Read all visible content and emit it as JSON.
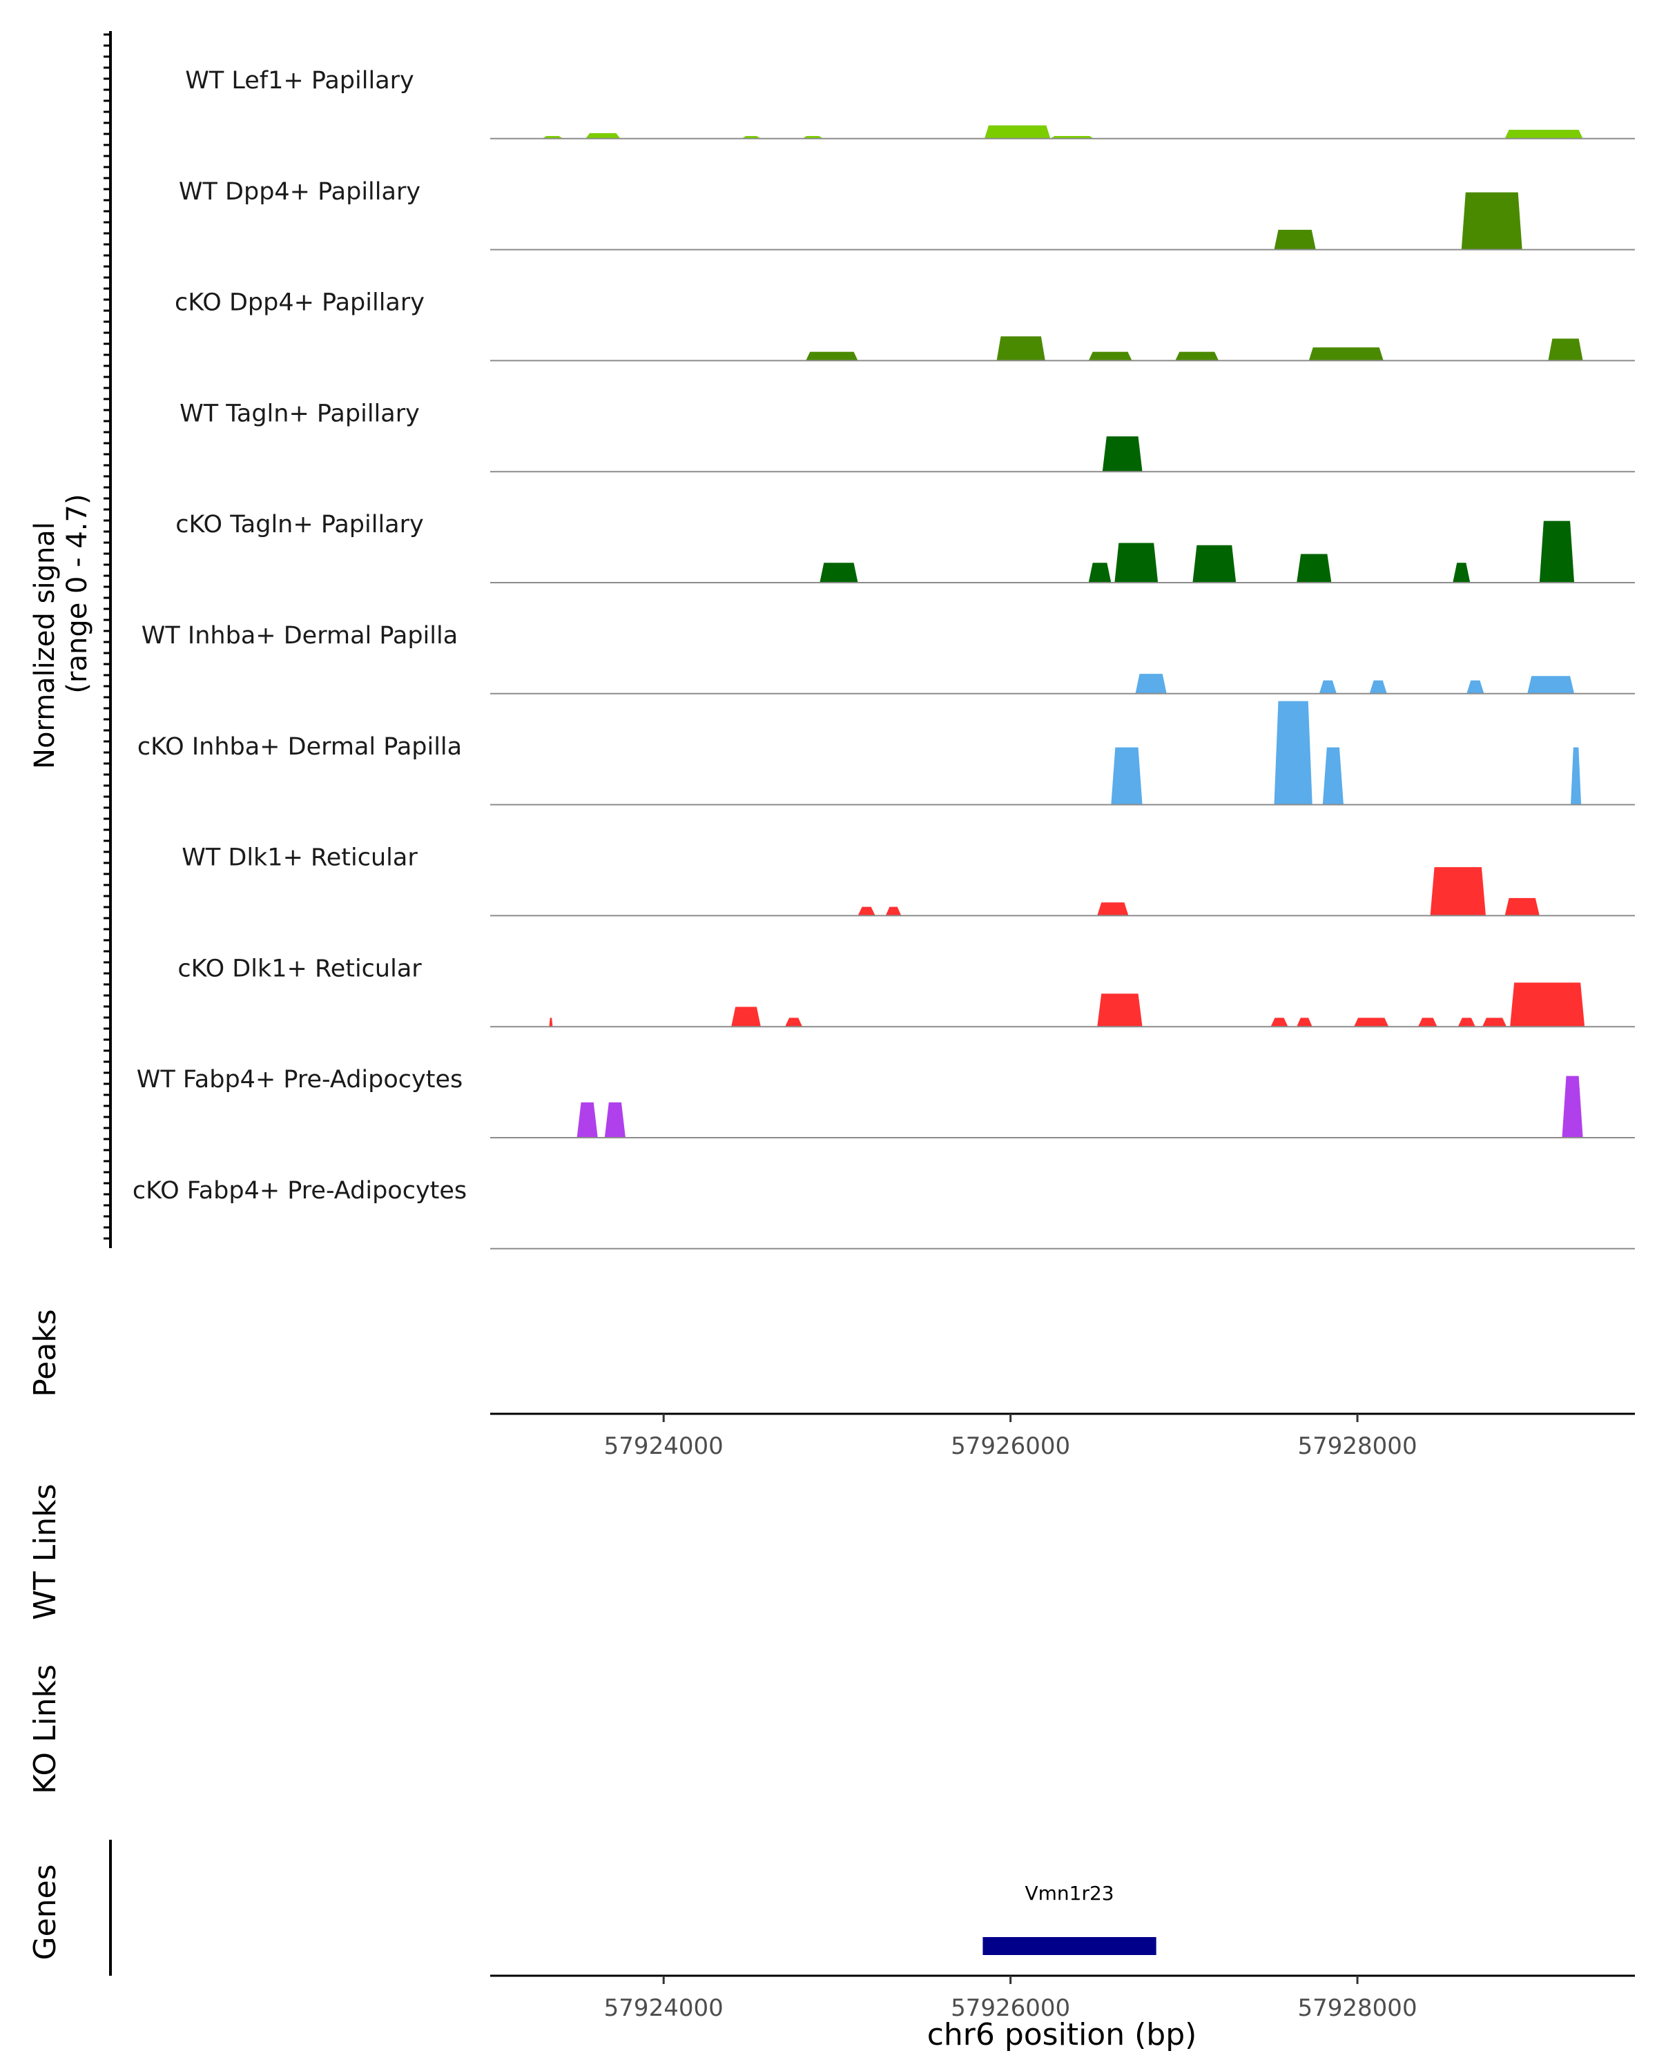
{
  "chart_data": {
    "type": "area",
    "title": "",
    "xlabel": "chr6 position (bp)",
    "ylabel": "Normalized signal\n(range 0 - 4.7)",
    "ylim": [
      0,
      4.7
    ],
    "xlim": [
      57923000,
      57929600
    ],
    "x_ticks": [
      57924000,
      57926000,
      57928000
    ],
    "tick_labels": [
      "57924000",
      "57926000",
      "57928000"
    ],
    "tracks": [
      {
        "name": "WT Lef1+ Papillary",
        "color": "#7ccd00",
        "segments": [
          {
            "start": 57923300,
            "end": 57923420,
            "height": 0.12
          },
          {
            "start": 57923550,
            "end": 57923750,
            "height": 0.25
          },
          {
            "start": 57924450,
            "end": 57924560,
            "height": 0.12
          },
          {
            "start": 57924800,
            "end": 57924920,
            "height": 0.12
          },
          {
            "start": 57925850,
            "end": 57926230,
            "height": 0.6
          },
          {
            "start": 57926230,
            "end": 57926480,
            "height": 0.12
          },
          {
            "start": 57928850,
            "end": 57929300,
            "height": 0.4
          }
        ]
      },
      {
        "name": "WT Dpp4+ Papillary",
        "color": "#4a8a00",
        "segments": [
          {
            "start": 57927520,
            "end": 57927760,
            "height": 0.9
          },
          {
            "start": 57928600,
            "end": 57928950,
            "height": 2.6
          }
        ]
      },
      {
        "name": "cKO Dpp4+ Papillary",
        "color": "#4a8a00",
        "segments": [
          {
            "start": 57924820,
            "end": 57925120,
            "height": 0.4
          },
          {
            "start": 57925920,
            "end": 57926200,
            "height": 1.1
          },
          {
            "start": 57926450,
            "end": 57926700,
            "height": 0.4
          },
          {
            "start": 57926950,
            "end": 57927200,
            "height": 0.4
          },
          {
            "start": 57927720,
            "end": 57928150,
            "height": 0.6
          },
          {
            "start": 57929100,
            "end": 57929300,
            "height": 1.0
          }
        ]
      },
      {
        "name": "WT Tagln+ Papillary",
        "color": "#006400",
        "segments": [
          {
            "start": 57926530,
            "end": 57926760,
            "height": 1.6
          }
        ]
      },
      {
        "name": "cKO Tagln+ Papillary",
        "color": "#006400",
        "segments": [
          {
            "start": 57924900,
            "end": 57925120,
            "height": 0.9
          },
          {
            "start": 57926450,
            "end": 57926580,
            "height": 0.9
          },
          {
            "start": 57926600,
            "end": 57926850,
            "height": 1.8
          },
          {
            "start": 57927050,
            "end": 57927300,
            "height": 1.7
          },
          {
            "start": 57927650,
            "end": 57927850,
            "height": 1.3
          },
          {
            "start": 57928550,
            "end": 57928650,
            "height": 0.9
          },
          {
            "start": 57929050,
            "end": 57929250,
            "height": 2.8
          }
        ]
      },
      {
        "name": "WT Inhba+ Dermal Papilla",
        "color": "#5aacea",
        "segments": [
          {
            "start": 57926720,
            "end": 57926900,
            "height": 0.9
          },
          {
            "start": 57927780,
            "end": 57927880,
            "height": 0.6
          },
          {
            "start": 57928070,
            "end": 57928170,
            "height": 0.6
          },
          {
            "start": 57928630,
            "end": 57928730,
            "height": 0.6
          },
          {
            "start": 57928980,
            "end": 57929250,
            "height": 0.8
          }
        ]
      },
      {
        "name": "cKO Inhba+ Dermal Papilla",
        "color": "#5aacea",
        "segments": [
          {
            "start": 57926580,
            "end": 57926760,
            "height": 2.6
          },
          {
            "start": 57927520,
            "end": 57927740,
            "height": 4.7
          },
          {
            "start": 57927800,
            "end": 57927920,
            "height": 2.6
          },
          {
            "start": 57929230,
            "end": 57929290,
            "height": 2.6
          }
        ]
      },
      {
        "name": "WT Dlk1+ Reticular",
        "color": "#ff3030",
        "segments": [
          {
            "start": 57925120,
            "end": 57925220,
            "height": 0.4
          },
          {
            "start": 57925280,
            "end": 57925370,
            "height": 0.4
          },
          {
            "start": 57926500,
            "end": 57926680,
            "height": 0.6
          },
          {
            "start": 57928420,
            "end": 57928740,
            "height": 2.2
          },
          {
            "start": 57928850,
            "end": 57929050,
            "height": 0.8
          }
        ]
      },
      {
        "name": "cKO Dlk1+ Reticular",
        "color": "#ff3030",
        "segments": [
          {
            "start": 57923340,
            "end": 57923360,
            "height": 0.4
          },
          {
            "start": 57924390,
            "end": 57924560,
            "height": 0.9
          },
          {
            "start": 57924700,
            "end": 57924800,
            "height": 0.4
          },
          {
            "start": 57926500,
            "end": 57926760,
            "height": 1.5
          },
          {
            "start": 57927500,
            "end": 57927600,
            "height": 0.4
          },
          {
            "start": 57927650,
            "end": 57927740,
            "height": 0.4
          },
          {
            "start": 57927980,
            "end": 57928180,
            "height": 0.4
          },
          {
            "start": 57928350,
            "end": 57928460,
            "height": 0.4
          },
          {
            "start": 57928580,
            "end": 57928680,
            "height": 0.4
          },
          {
            "start": 57928720,
            "end": 57928860,
            "height": 0.4
          },
          {
            "start": 57928880,
            "end": 57929310,
            "height": 2.0
          }
        ]
      },
      {
        "name": "WT Fabp4+ Pre-Adipocytes",
        "color": "#b040ec",
        "segments": [
          {
            "start": 57923500,
            "end": 57923620,
            "height": 1.6
          },
          {
            "start": 57923660,
            "end": 57923780,
            "height": 1.6
          },
          {
            "start": 57929180,
            "end": 57929300,
            "height": 2.8
          }
        ]
      },
      {
        "name": "cKO Fabp4+ Pre-Adipocytes",
        "color": "#b040ec",
        "segments": []
      }
    ],
    "panels": {
      "peaks": "Peaks",
      "wt_links": "WT Links",
      "ko_links": "KO Links",
      "genes": "Genes"
    },
    "genes": [
      {
        "name": "Vmn1r23",
        "start": 57925840,
        "end": 57926840,
        "color": "#00008b"
      }
    ]
  }
}
